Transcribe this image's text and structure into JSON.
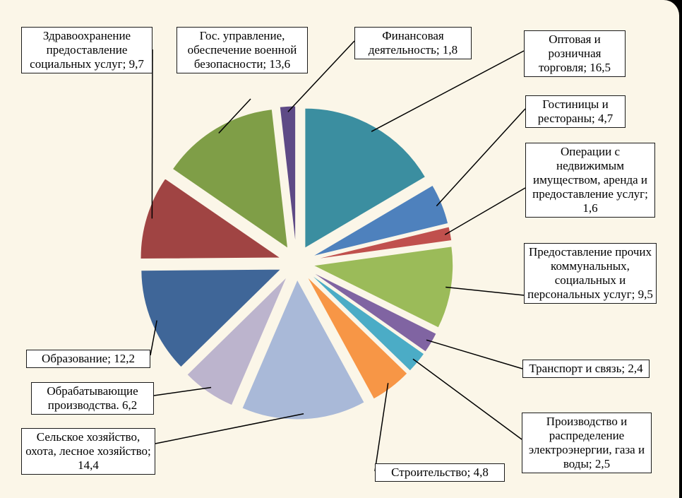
{
  "chart_data": {
    "type": "pie",
    "exploded": true,
    "slices": [
      {
        "label": "Оптовая и розничная торговля; 16,5",
        "value": 16.5,
        "color": "#3B8EA0"
      },
      {
        "label": "Гостиницы и рестораны; 4,7",
        "value": 4.7,
        "color": "#4E81BD"
      },
      {
        "label": "Операции с недвижимым имуществом, аренда и предоставление услуг; 1,6",
        "value": 1.6,
        "color": "#C0504D"
      },
      {
        "label": "Предоставление прочих коммунальных, социальных и персональных услуг; 9,5",
        "value": 9.5,
        "color": "#9BBB59"
      },
      {
        "label": "Транспорт и связь; 2,4",
        "value": 2.4,
        "color": "#8064A2"
      },
      {
        "label": "Производство и распределение электроэнергии, газа и воды; 2,5",
        "value": 2.5,
        "color": "#4BACC6"
      },
      {
        "label": "Строительство; 4,8",
        "value": 4.8,
        "color": "#F79646"
      },
      {
        "label": "Сельское хозяйство, охота, лесное хозяйство; 14,4",
        "value": 14.4,
        "color": "#A9B9D8"
      },
      {
        "label": "Обрабатывающие производства. 6,2",
        "value": 6.2,
        "color": "#BCB4CD"
      },
      {
        "label": "Образование; 12,2",
        "value": 12.2,
        "color": "#3F6698"
      },
      {
        "label": "Здравоохранение предоставление социальных услуг; 9,7",
        "value": 9.7,
        "color": "#A04443"
      },
      {
        "label": "Гос. управление, обеспечение военной безопасности; 13,6",
        "value": 13.6,
        "color": "#7F9E47"
      },
      {
        "label": "Финансовая деятельность; 1,8",
        "value": 1.8,
        "color": "#5E4A86"
      }
    ]
  }
}
